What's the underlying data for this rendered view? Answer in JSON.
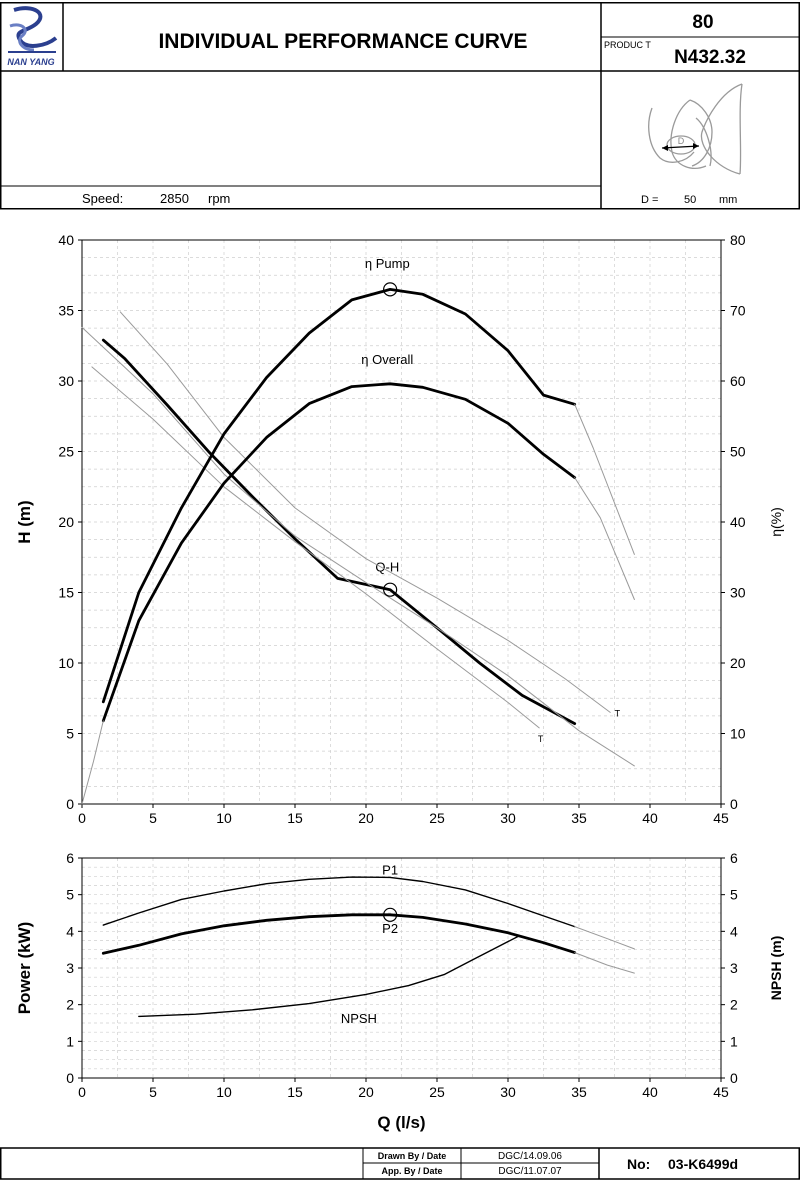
{
  "header": {
    "logo_text": "NAN YANG",
    "title": "INDIVIDUAL PERFORMANCE  CURVE",
    "size": "80",
    "product_label": "PRODUC  T",
    "product": "N432.32"
  },
  "info": {
    "speed_label": "Speed:",
    "speed_value": "2850",
    "speed_unit": "rpm",
    "diameter_label": "D =",
    "diameter_value": "50",
    "diameter_unit": "mm",
    "impeller_label": "D"
  },
  "footer": {
    "drawn_label": "Drawn By / Date",
    "drawn_value": "DGC/14.09.06",
    "approved_label": "App. By / Date",
    "approved_value": "DGC/11.07.07",
    "number_label": "No:",
    "number_value": "03-K6499d"
  },
  "chart_data": [
    {
      "type": "line",
      "xlabel": "",
      "ylabel": "H (m)",
      "y2label": "η(%)",
      "xlim": [
        0,
        45
      ],
      "ylim": [
        0,
        40
      ],
      "y2lim": [
        0,
        80
      ],
      "xticks": [
        0,
        5,
        10,
        15,
        20,
        25,
        30,
        35,
        40,
        45
      ],
      "yticks": [
        0,
        5,
        10,
        15,
        20,
        25,
        30,
        35,
        40
      ],
      "y2ticks": [
        0,
        10,
        20,
        30,
        40,
        50,
        60,
        70,
        80
      ],
      "grid": true,
      "series": [
        {
          "name": "Q-H",
          "axis": "left",
          "style": "main",
          "label_at": [
            21.5,
            16.5
          ],
          "x": [
            1.5,
            3,
            6,
            9,
            12,
            15,
            18,
            21.7,
            25,
            28,
            31,
            34.7
          ],
          "y": [
            32.9,
            31.6,
            28.3,
            24.9,
            21.8,
            18.8,
            16.0,
            15.2,
            12.5,
            10.0,
            7.7,
            5.7
          ]
        },
        {
          "name": "",
          "axis": "left",
          "style": "thin",
          "tag": "T",
          "tag_at": [
            37.7,
            6.2
          ],
          "x": [
            2.7,
            6,
            10,
            15,
            20,
            25,
            30,
            34,
            37.2
          ],
          "y": [
            34.9,
            31.2,
            26.0,
            21.0,
            17.4,
            14.6,
            11.6,
            8.9,
            6.5
          ]
        },
        {
          "name": "",
          "axis": "left",
          "style": "thin",
          "tag": "T",
          "tag_at": [
            32.3,
            4.4
          ],
          "x": [
            0.7,
            5,
            10,
            15,
            20,
            25,
            30,
            32.2
          ],
          "y": [
            31.0,
            27.3,
            22.5,
            18.6,
            14.9,
            11.0,
            7.2,
            5.4
          ]
        },
        {
          "name": "",
          "axis": "left",
          "style": "thin",
          "x": [
            0,
            5,
            10,
            15,
            20,
            25,
            30,
            35,
            38.9
          ],
          "y": [
            33.8,
            29.1,
            23.4,
            19.0,
            15.7,
            12.5,
            9.1,
            5.2,
            2.7
          ]
        },
        {
          "name": "η Pump",
          "axis": "right",
          "style": "main",
          "label_at": [
            21.5,
            76
          ],
          "x": [
            1.5,
            4,
            7,
            10,
            13,
            16,
            19,
            21.7,
            24,
            27,
            30,
            32.5,
            34.7
          ],
          "y": [
            14.5,
            30,
            42,
            52.5,
            60.5,
            66.8,
            71.5,
            73.0,
            72.3,
            69.5,
            64.3,
            58,
            56.7
          ]
        },
        {
          "name": "",
          "axis": "right",
          "style": "thin",
          "x": [
            34.7,
            36,
            38.9
          ],
          "y": [
            56.7,
            50.5,
            35.4
          ]
        },
        {
          "name": "η Overall",
          "axis": "right",
          "style": "main",
          "label_at": [
            21.5,
            62.4
          ],
          "x": [
            1.5,
            4,
            7,
            10,
            13,
            16,
            19,
            21.7,
            24,
            27,
            30,
            32.5,
            34.7
          ],
          "y": [
            11.8,
            26,
            37,
            45.5,
            52,
            56.8,
            59.2,
            59.6,
            59.1,
            57.4,
            54.0,
            49.6,
            46.3
          ]
        },
        {
          "name": "",
          "axis": "right",
          "style": "thin",
          "x": [
            34.7,
            36.5,
            38.9
          ],
          "y": [
            46.3,
            40.6,
            29.0
          ]
        },
        {
          "name": "",
          "axis": "right",
          "style": "thin",
          "x": [
            0,
            0.8,
            1.5
          ],
          "y": [
            0,
            6,
            11.8
          ]
        }
      ],
      "markers": [
        {
          "axis": "right",
          "x": 21.7,
          "y": 73.0
        },
        {
          "axis": "left",
          "x": 21.7,
          "y": 15.2
        }
      ]
    },
    {
      "type": "line",
      "xlabel": "Q (l/s)",
      "ylabel": "Power (kW)",
      "y2label": "NPSH (m)",
      "xlim": [
        0,
        45
      ],
      "ylim": [
        0,
        6
      ],
      "y2lim": [
        0,
        6
      ],
      "xticks": [
        0,
        5,
        10,
        15,
        20,
        25,
        30,
        35,
        40,
        45
      ],
      "yticks": [
        0,
        1,
        2,
        3,
        4,
        5,
        6
      ],
      "y2ticks": [
        0,
        1,
        2,
        3,
        4,
        5,
        6
      ],
      "grid": true,
      "series": [
        {
          "name": "P1",
          "axis": "left",
          "style": "medium",
          "label_at": [
            21.7,
            5.55
          ],
          "x": [
            1.5,
            4,
            7,
            10,
            13,
            16,
            19,
            21.7,
            24,
            27,
            30,
            32.5,
            34.7
          ],
          "y": [
            4.17,
            4.5,
            4.87,
            5.1,
            5.3,
            5.42,
            5.48,
            5.47,
            5.36,
            5.13,
            4.76,
            4.42,
            4.13
          ]
        },
        {
          "name": "",
          "axis": "left",
          "style": "thin",
          "x": [
            34.7,
            37,
            38.9
          ],
          "y": [
            4.13,
            3.8,
            3.52
          ]
        },
        {
          "name": "P2",
          "axis": "left",
          "style": "main",
          "label_at": [
            21.7,
            3.95
          ],
          "x": [
            1.5,
            4,
            7,
            10,
            13,
            16,
            19,
            21.7,
            24,
            27,
            30,
            32.5,
            34.7
          ],
          "y": [
            3.4,
            3.62,
            3.93,
            4.15,
            4.3,
            4.4,
            4.45,
            4.45,
            4.38,
            4.2,
            3.96,
            3.69,
            3.42
          ]
        },
        {
          "name": "",
          "axis": "left",
          "style": "thin",
          "x": [
            34.7,
            37,
            38.9
          ],
          "y": [
            3.42,
            3.08,
            2.86
          ]
        },
        {
          "name": "NPSH",
          "axis": "right",
          "style": "medium",
          "label_at": [
            19.5,
            1.5
          ],
          "x": [
            4,
            8,
            12,
            16,
            20,
            23,
            25.5,
            27.5,
            29.5,
            30.8
          ],
          "y": [
            1.68,
            1.74,
            1.86,
            2.03,
            2.28,
            2.52,
            2.82,
            3.22,
            3.62,
            3.88
          ]
        }
      ],
      "markers": [
        {
          "axis": "left",
          "x": 21.7,
          "y": 4.45
        }
      ]
    }
  ]
}
